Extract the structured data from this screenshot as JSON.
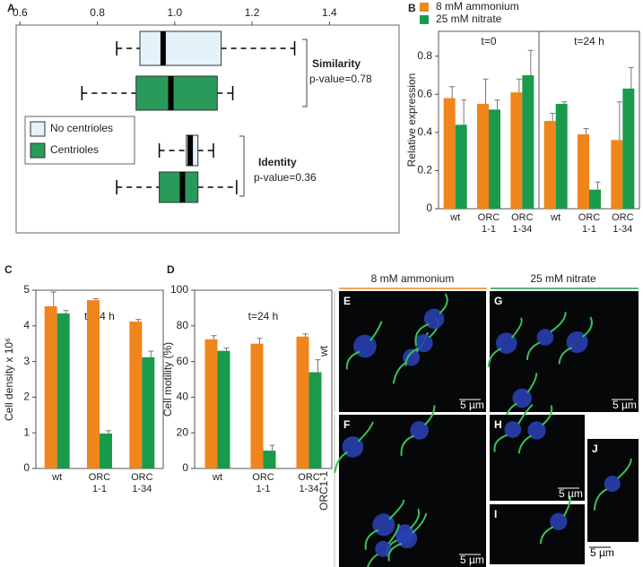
{
  "chart_data": [
    {
      "type": "boxplot",
      "panel": "A",
      "orientation": "horizontal",
      "xlim": [
        0.59,
        1.58
      ],
      "xticks": [
        0.6,
        0.8,
        {
          "value": 1,
          "label": "1.0"
        },
        1.2,
        1.4
      ],
      "series": [
        {
          "name": "No centrioles",
          "color": "#e4f3f9"
        },
        {
          "name": "Centrioles",
          "color": "#2a9a5a"
        }
      ],
      "groups": [
        {
          "label": "Similarity",
          "annotation": "p-value=0.78",
          "boxes": [
            {
              "whislo": 0.85,
              "q1": 0.91,
              "med": 0.97,
              "q3": 1.12,
              "whishi": 1.31
            },
            {
              "whislo": 0.76,
              "q1": 0.9,
              "med": 0.99,
              "q3": 1.11,
              "whishi": 1.15
            }
          ]
        },
        {
          "label": "Identity",
          "annotation": "p-value=0.36",
          "boxes": [
            {
              "whislo": 0.96,
              "q1": 1.03,
              "med": 1.04,
              "q3": 1.06,
              "whishi": 1.1
            },
            {
              "whislo": 0.85,
              "q1": 0.96,
              "med": 1.02,
              "q3": 1.06,
              "whishi": 1.16
            }
          ]
        }
      ]
    },
    {
      "type": "bar",
      "panel": "B",
      "ylabel": "Relative expression",
      "categories": [
        "wt",
        "ORC 1-1",
        "ORC 1-34"
      ],
      "ylim": [
        0,
        0.93
      ],
      "yticks": [
        0,
        0.2,
        0.4,
        0.6,
        0.8
      ],
      "legend": [
        {
          "name": "8 mM ammonium",
          "color": "#f0851c"
        },
        {
          "name": "25 mM nitrate",
          "color": "#1a9b4b"
        }
      ],
      "facets": [
        {
          "title": "t=0",
          "series": [
            {
              "values": [
                0.58,
                0.55,
                0.61
              ],
              "errors": [
                0.06,
                0.13,
                0.07
              ]
            },
            {
              "values": [
                0.44,
                0.52,
                0.7
              ],
              "errors": [
                0.13,
                0.05,
                0.13
              ]
            }
          ]
        },
        {
          "title": "t=24 h",
          "series": [
            {
              "values": [
                0.46,
                0.39,
                0.36
              ],
              "errors": [
                0.04,
                0.03,
                0.2
              ]
            },
            {
              "values": [
                0.55,
                0.1,
                0.63
              ],
              "errors": [
                0.01,
                0.04,
                0.11
              ]
            }
          ]
        }
      ]
    },
    {
      "type": "bar",
      "panel": "C",
      "ylabel": "Cell density x 10⁶",
      "categories": [
        "wt",
        "ORC 1-1",
        "ORC 1-34"
      ],
      "ylim": [
        0,
        5
      ],
      "yticks": [
        0,
        1,
        2,
        3,
        4,
        5
      ],
      "facets": [
        {
          "title": "t=24 h",
          "series": [
            {
              "color": "#f0851c",
              "values": [
                4.55,
                4.72,
                4.12
              ],
              "errors": [
                0.4,
                0.04,
                0.06
              ]
            },
            {
              "color": "#1a9b4b",
              "values": [
                4.35,
                0.98,
                3.12
              ],
              "errors": [
                0.08,
                0.08,
                0.17
              ]
            }
          ]
        }
      ]
    },
    {
      "type": "bar",
      "panel": "D",
      "ylabel": "Cell motility (%)",
      "categories": [
        "wt",
        "ORC 1-1",
        "ORC 1-34"
      ],
      "ylim": [
        0,
        100
      ],
      "yticks": [
        0,
        20,
        40,
        60,
        80,
        100
      ],
      "facets": [
        {
          "title": "t=24 h",
          "series": [
            {
              "color": "#f0851c",
              "values": [
                72.5,
                70,
                74
              ],
              "errors": [
                2,
                3,
                1.5
              ]
            },
            {
              "color": "#1a9b4b",
              "values": [
                66,
                10,
                54
              ],
              "errors": [
                1.5,
                3,
                7
              ]
            }
          ]
        }
      ]
    }
  ],
  "micrographs": {
    "headers": [
      "8 mM ammonium",
      "25 mM nitrate"
    ],
    "rows": [
      "wt",
      "ORC1-1"
    ],
    "panels": [
      {
        "label": "E",
        "scale": "5 µm"
      },
      {
        "label": "G",
        "scale": "5 µm"
      },
      {
        "label": "F",
        "scale": "5 µm"
      },
      {
        "label": "H",
        "scale": "5 µm"
      },
      {
        "label": "I"
      },
      {
        "label": "J",
        "scale": "5 µm"
      }
    ]
  }
}
